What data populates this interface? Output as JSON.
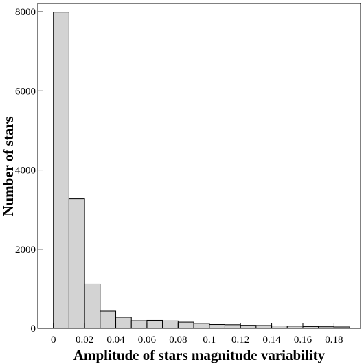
{
  "chart_data": {
    "type": "histogram",
    "xlabel": "Amplitude of stars magnitude variability",
    "ylabel": "Number of stars",
    "bins": [
      0,
      0.01,
      0.02,
      0.03,
      0.04,
      0.05,
      0.06,
      0.07,
      0.08,
      0.09,
      0.1,
      0.11,
      0.12,
      0.13,
      0.14,
      0.15,
      0.16,
      0.17,
      0.18,
      0.19
    ],
    "values": [
      7990,
      3270,
      1120,
      434,
      278,
      190,
      200,
      185,
      155,
      125,
      95,
      90,
      75,
      70,
      60,
      55,
      45,
      40,
      35
    ],
    "color": "#d3d3d3",
    "xlim": [
      -0.01,
      0.197
    ],
    "ylim": [
      0,
      8210
    ],
    "xticks": [
      0,
      0.02,
      0.04,
      0.06,
      0.08,
      0.1,
      0.12,
      0.14,
      0.16,
      0.18
    ],
    "yticks": [
      0,
      2000,
      4000,
      6000,
      8000
    ]
  }
}
